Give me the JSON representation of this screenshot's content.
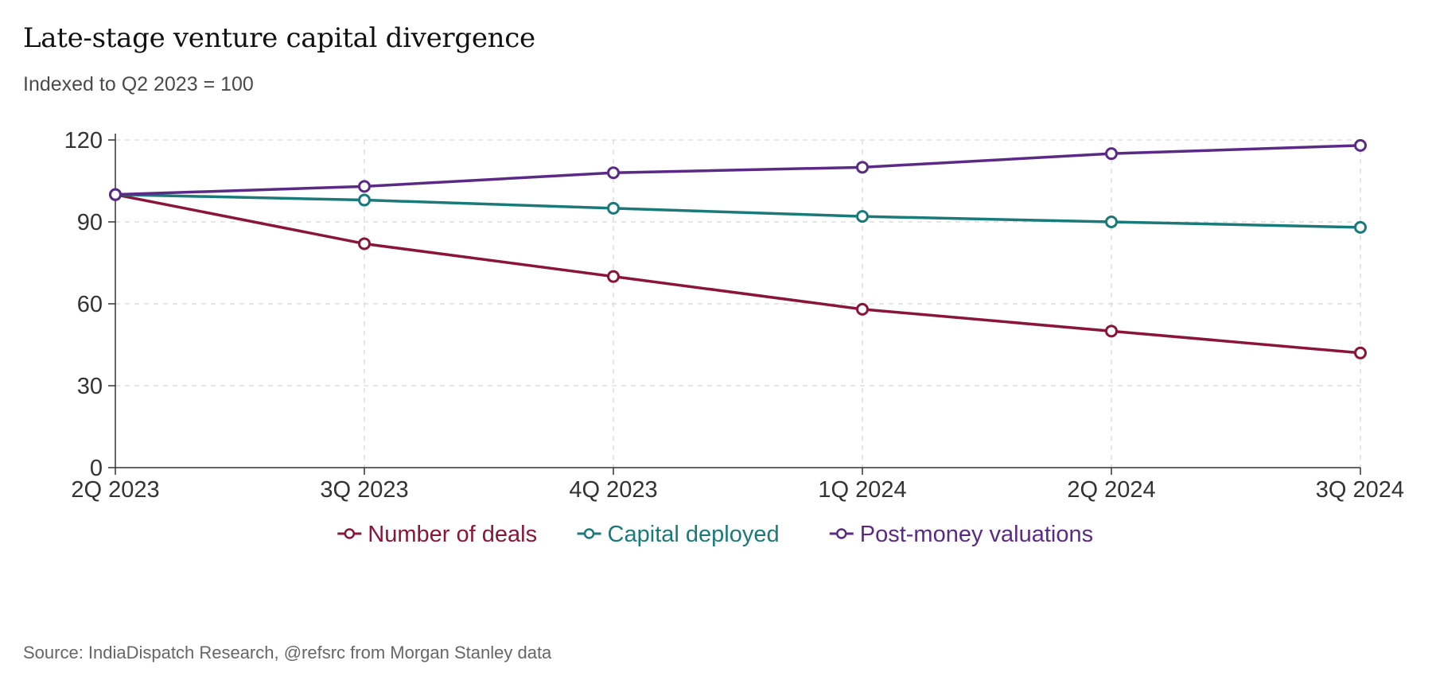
{
  "chart_data": {
    "type": "line",
    "title": "Late-stage venture capital divergence",
    "subtitle": "Indexed to Q2 2023 = 100",
    "source": "Source: IndiaDispatch Research, @refsrc from Morgan Stanley data",
    "x": [
      "2Q 2023",
      "3Q 2023",
      "4Q 2023",
      "1Q 2024",
      "2Q 2024",
      "3Q 2024"
    ],
    "ylim": [
      0,
      120
    ],
    "yticks": [
      0,
      30,
      60,
      90,
      120
    ],
    "grid": true,
    "legend_position": "bottom-center",
    "series": [
      {
        "name": "Number of deals",
        "color": "#8b1538",
        "values": [
          100,
          82,
          70,
          58,
          50,
          42
        ]
      },
      {
        "name": "Capital deployed",
        "color": "#1a7a7a",
        "values": [
          100,
          98,
          95,
          92,
          90,
          88
        ]
      },
      {
        "name": "Post-money valuations",
        "color": "#5b2a86",
        "values": [
          100,
          103,
          108,
          110,
          115,
          118
        ]
      }
    ]
  }
}
